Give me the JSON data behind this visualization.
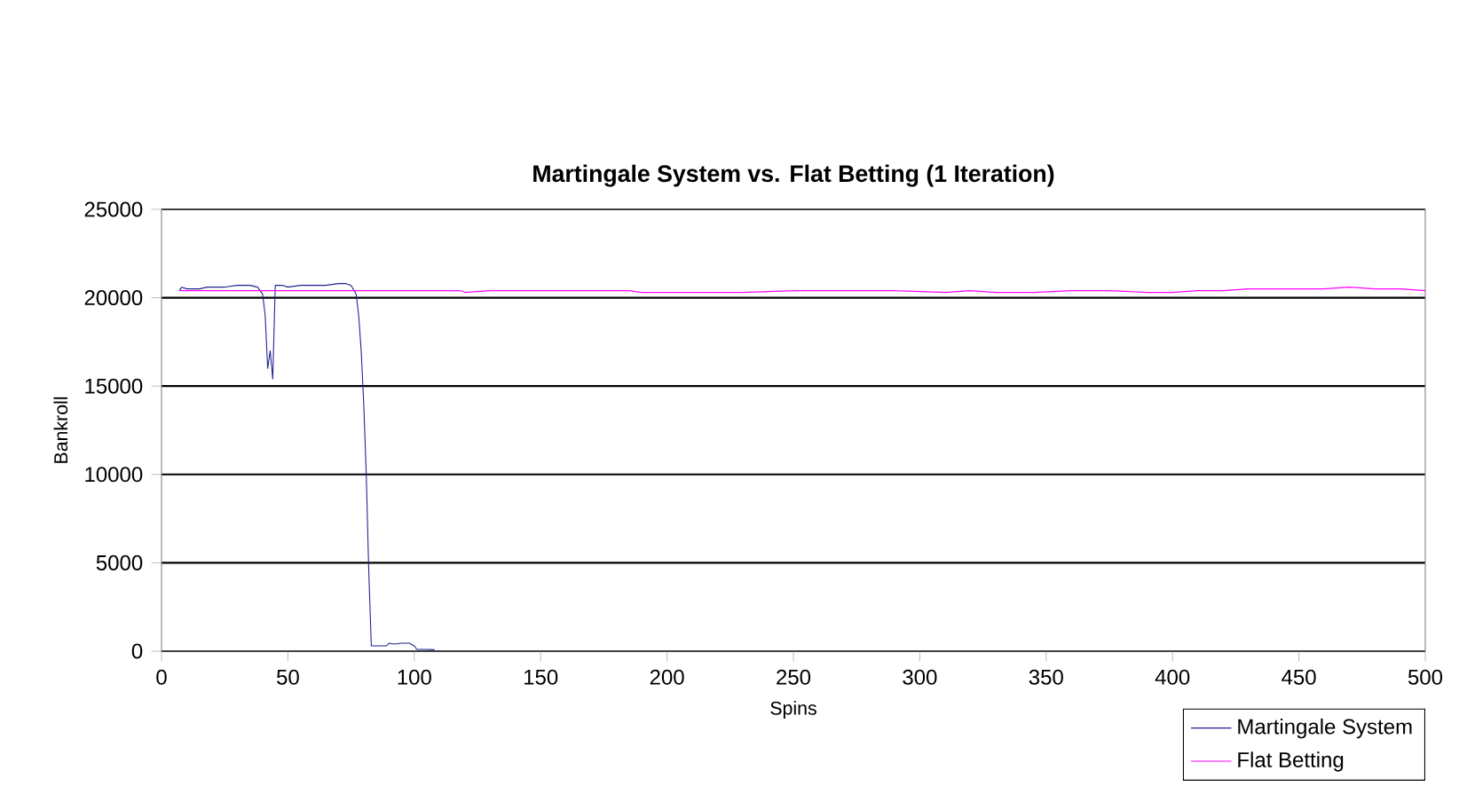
{
  "chart_data": {
    "type": "line",
    "title": "Martingale System vs. Flat Betting (1 Iteration)",
    "xlabel": "Spins",
    "ylabel": "Bankroll",
    "xlim": [
      0,
      500
    ],
    "xticks": [
      0,
      50,
      100,
      150,
      200,
      250,
      300,
      350,
      400,
      450,
      500
    ],
    "ylim": [
      0,
      25000
    ],
    "yticks": [
      0,
      5000,
      10000,
      15000,
      20000,
      25000
    ],
    "grid": "y",
    "legend": "bottom right",
    "marker": "none",
    "line_style": "solid",
    "series": [
      {
        "name": "Martingale System",
        "color": "#1f1f8f",
        "x": [
          7,
          8,
          10,
          12,
          15,
          18,
          20,
          25,
          30,
          35,
          38,
          40,
          41,
          42,
          43,
          44,
          45,
          48,
          50,
          55,
          60,
          65,
          70,
          73,
          75,
          77,
          78,
          79,
          80,
          81,
          82,
          83,
          85,
          89,
          90,
          92,
          95,
          98,
          100,
          101,
          105,
          108
        ],
        "values": [
          20400,
          20600,
          20500,
          20500,
          20500,
          20600,
          20600,
          20600,
          20700,
          20700,
          20600,
          20200,
          19000,
          16000,
          17000,
          15400,
          20700,
          20700,
          20600,
          20700,
          20700,
          20700,
          20800,
          20800,
          20700,
          20200,
          19000,
          17000,
          14000,
          10000,
          4500,
          300,
          300,
          300,
          450,
          400,
          450,
          450,
          300,
          100,
          100,
          80
        ]
      },
      {
        "name": "Flat Betting",
        "color": "#ff00ff",
        "x": [
          7,
          20,
          40,
          60,
          80,
          100,
          118,
          120,
          130,
          140,
          160,
          185,
          190,
          210,
          230,
          250,
          255,
          270,
          290,
          310,
          320,
          330,
          345,
          360,
          375,
          390,
          400,
          410,
          420,
          430,
          440,
          450,
          460,
          470,
          480,
          490,
          500
        ],
        "values": [
          20400,
          20400,
          20400,
          20400,
          20400,
          20400,
          20400,
          20300,
          20400,
          20400,
          20400,
          20400,
          20300,
          20300,
          20300,
          20400,
          20400,
          20400,
          20400,
          20300,
          20400,
          20300,
          20300,
          20400,
          20400,
          20300,
          20300,
          20400,
          20400,
          20500,
          20500,
          20500,
          20500,
          20600,
          20500,
          20500,
          20400
        ]
      }
    ]
  }
}
